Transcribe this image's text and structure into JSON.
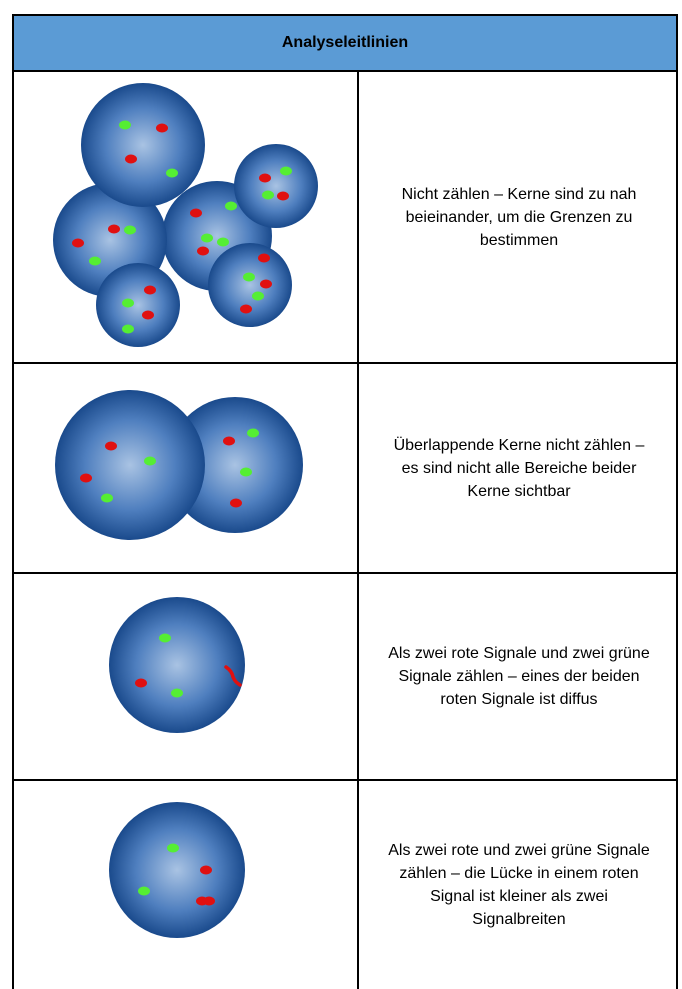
{
  "header": {
    "title": "Analyseleitlinien"
  },
  "rows": [
    {
      "text": "Nicht zählen – Kerne sind zu nah beieinander, um die Grenzen zu bestimmen"
    },
    {
      "text": "Überlappende Kerne nicht zählen – es sind nicht alle Bereiche beider Kerne sichtbar"
    },
    {
      "text": "Als zwei rote Signale und zwei grüne Signale zählen – eines der beiden roten Signale ist diffus"
    },
    {
      "text": "Als zwei rote und zwei grüne Signale zählen – die Lücke in einem roten Signal ist kleiner als zwei Signalbreiten"
    }
  ]
}
